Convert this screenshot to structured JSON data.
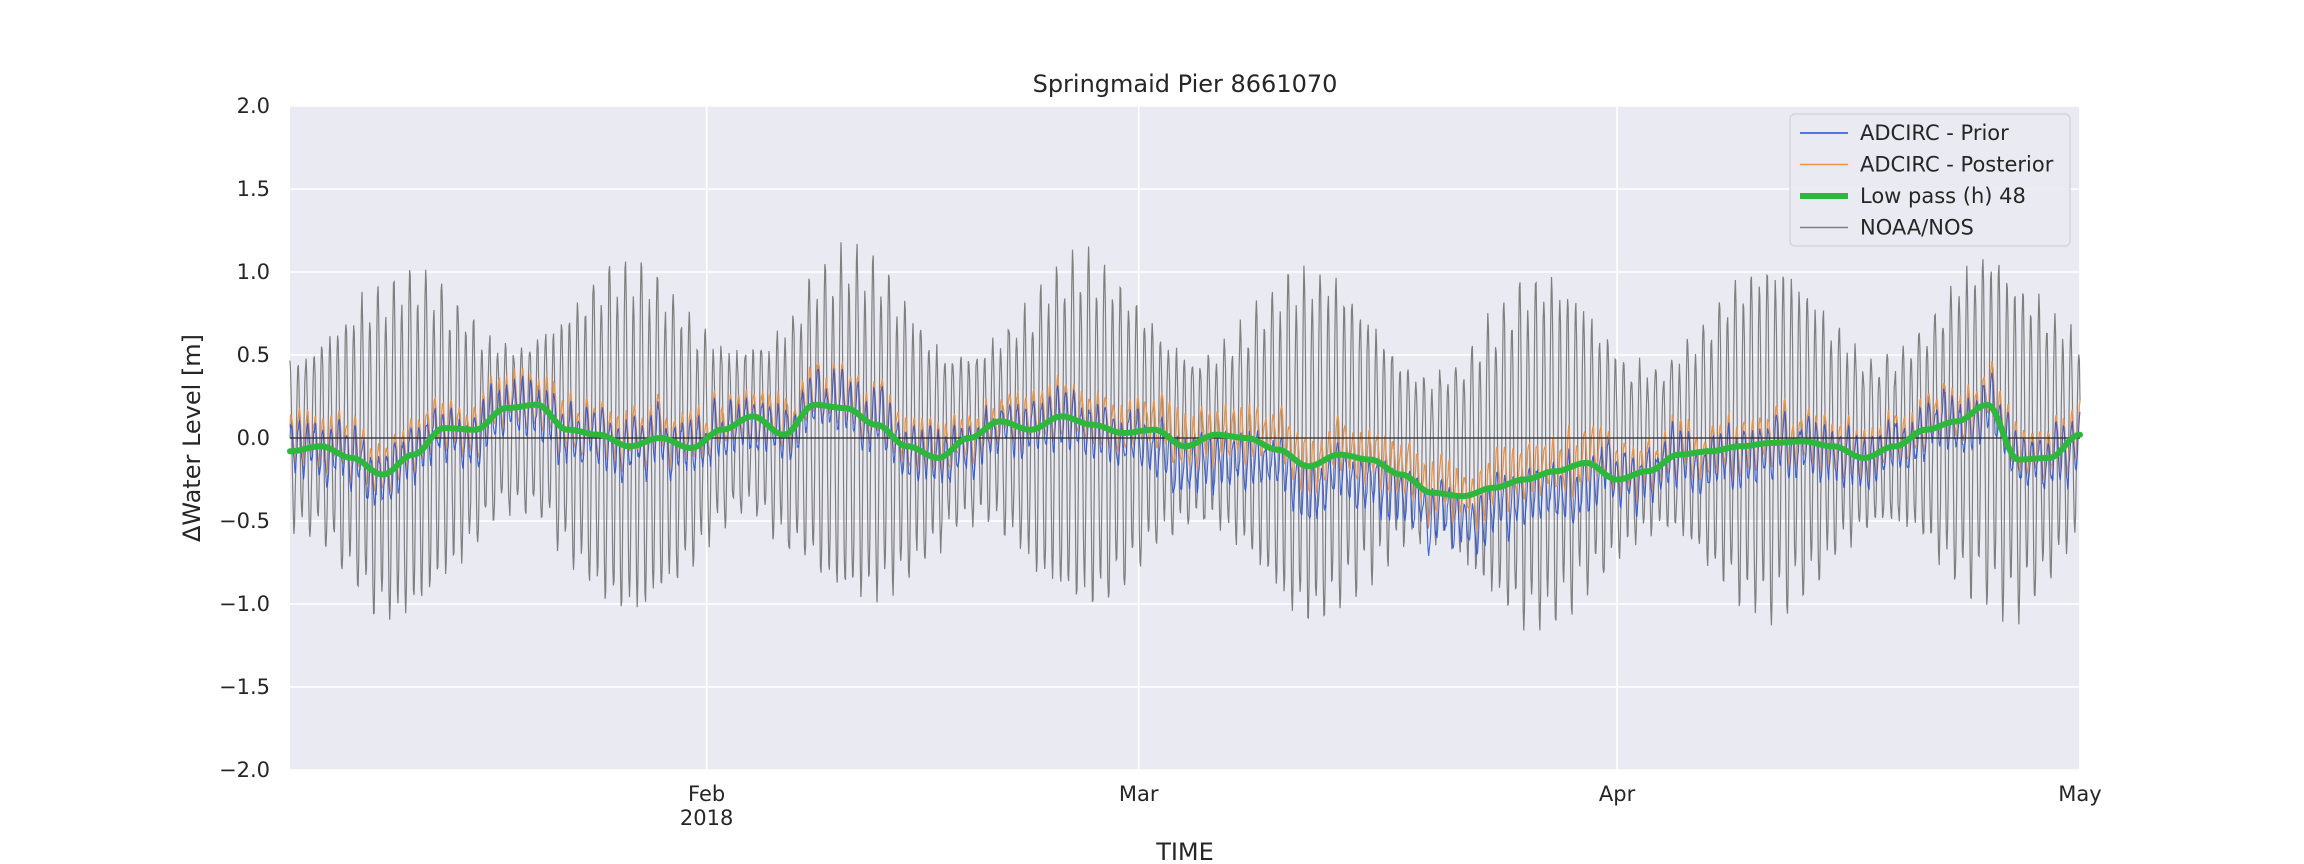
{
  "chart_data": {
    "type": "line",
    "title": "Springmaid Pier  8661070",
    "xlabel": "TIME",
    "ylabel": "ΔWater Level [m]",
    "x_range": [
      "2018-01-05",
      "2018-05-01"
    ],
    "ylim": [
      -2.0,
      2.0
    ],
    "y_ticks": [
      "2.0",
      "1.5",
      "1.0",
      "0.5",
      "0.0",
      "−0.5",
      "−1.0",
      "−1.5",
      "−2.0"
    ],
    "x_ticks": [
      {
        "date": "2018-02-01",
        "label": "Feb",
        "sublabel": "2018"
      },
      {
        "date": "2018-03-01",
        "label": "Mar",
        "sublabel": ""
      },
      {
        "date": "2018-04-01",
        "label": "Apr",
        "sublabel": ""
      },
      {
        "date": "2018-05-01",
        "label": "May",
        "sublabel": ""
      }
    ],
    "grid": true,
    "zero_line": true,
    "legend_position": "upper-right",
    "colors": {
      "background": "#eaeaf2",
      "grid": "#ffffff",
      "prior": "#1f4fe0",
      "posterior": "#e8954a",
      "lowpass": "#2db83d",
      "noaa": "#7f7f7f",
      "zero": "#222222"
    },
    "series": [
      {
        "name": "ADCIRC - Prior",
        "role": "prior",
        "description": "model water level anomaly, same shape as posterior but lower in March"
      },
      {
        "name": "ADCIRC - Posterior",
        "role": "posterior"
      },
      {
        "name": "Low pass (h) 48",
        "role": "lowpass",
        "x": [
          "2018-01-05",
          "2018-01-07",
          "2018-01-09",
          "2018-01-11",
          "2018-01-13",
          "2018-01-15",
          "2018-01-17",
          "2018-01-19",
          "2018-01-21",
          "2018-01-23",
          "2018-01-25",
          "2018-01-27",
          "2018-01-29",
          "2018-01-31",
          "2018-02-02",
          "2018-02-04",
          "2018-02-06",
          "2018-02-08",
          "2018-02-10",
          "2018-02-12",
          "2018-02-14",
          "2018-02-16",
          "2018-02-18",
          "2018-02-20",
          "2018-02-22",
          "2018-02-24",
          "2018-02-26",
          "2018-02-28",
          "2018-03-02",
          "2018-03-04",
          "2018-03-06",
          "2018-03-08",
          "2018-03-10",
          "2018-03-12",
          "2018-03-14",
          "2018-03-16",
          "2018-03-18",
          "2018-03-20",
          "2018-03-22",
          "2018-03-24",
          "2018-03-26",
          "2018-03-28",
          "2018-03-30",
          "2018-04-01",
          "2018-04-03",
          "2018-04-05",
          "2018-04-07",
          "2018-04-09",
          "2018-04-11",
          "2018-04-13",
          "2018-04-15",
          "2018-04-17",
          "2018-04-19",
          "2018-04-21",
          "2018-04-23",
          "2018-04-25",
          "2018-04-27",
          "2018-04-29",
          "2018-05-01"
        ],
        "y": [
          -0.08,
          -0.05,
          -0.12,
          -0.22,
          -0.1,
          0.06,
          0.05,
          0.18,
          0.2,
          0.05,
          0.02,
          -0.05,
          0.0,
          -0.06,
          0.05,
          0.13,
          0.02,
          0.2,
          0.18,
          0.08,
          -0.05,
          -0.12,
          0.0,
          0.1,
          0.05,
          0.13,
          0.08,
          0.03,
          0.05,
          -0.05,
          0.02,
          0.0,
          -0.07,
          -0.17,
          -0.1,
          -0.13,
          -0.22,
          -0.33,
          -0.35,
          -0.3,
          -0.25,
          -0.2,
          -0.15,
          -0.25,
          -0.2,
          -0.1,
          -0.08,
          -0.05,
          -0.03,
          -0.02,
          -0.05,
          -0.12,
          -0.05,
          0.05,
          0.1,
          0.2,
          -0.13,
          -0.12,
          0.02
        ]
      },
      {
        "name": "NOAA/NOS",
        "role": "noaa"
      }
    ]
  }
}
